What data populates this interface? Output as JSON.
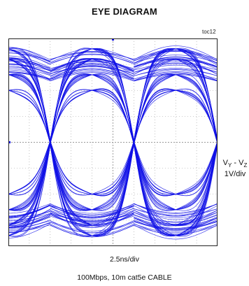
{
  "title": "EYE DIAGRAM",
  "figure_id": "toc12",
  "y_scale_prefix": "V",
  "y_scale_sub1": "Y",
  "y_scale_mid": " - V",
  "y_scale_sub2": "Z",
  "y_scale_unit": "1V/div",
  "x_scale": "2.5ns/div",
  "caption": "100Mbps, 10m cat5e CABLE",
  "colors": {
    "trace": "#1010e6",
    "grid": "#9a9a9a",
    "frame": "#222222"
  },
  "chart_data": {
    "type": "line",
    "title": "EYE DIAGRAM",
    "x_scale": "2.5ns/div",
    "y_scale": "1V/div",
    "x_divisions": 10,
    "y_divisions": 8,
    "x_range_ns": [
      0,
      25
    ],
    "y_range_v": [
      -4,
      4
    ],
    "crossing_times_ns": [
      -5,
      5,
      15,
      25
    ],
    "crossing_level_v": 0,
    "high_level_v": 3.2,
    "low_level_v": -3.2,
    "levels_v": [
      3.6,
      3.2,
      2.6,
      2.0,
      -2.0,
      -2.6,
      -3.2,
      -3.6
    ],
    "grid": true
  }
}
